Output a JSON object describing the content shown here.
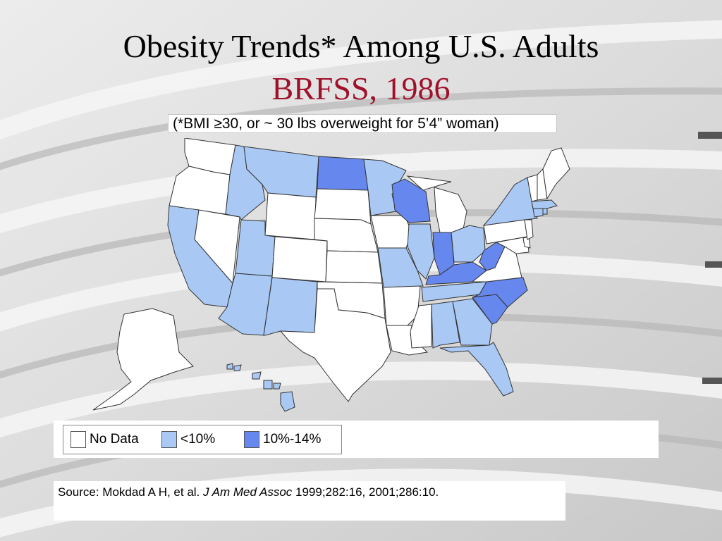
{
  "title": "Obesity Trends* Among U.S. Adults",
  "subtitle": "BRFSS, 1986",
  "note": "(*BMI ≥30, or ~ 30 lbs overweight for 5’4” woman)",
  "colors": {
    "no_data": "#ffffff",
    "lt10": "#a9c8f4",
    "10_14": "#6688ee",
    "title_red": "#a0102a",
    "state_border": "#333333"
  },
  "legend": [
    {
      "label": "No Data",
      "color_key": "no_data"
    },
    {
      "label": "<10%",
      "color_key": "lt10"
    },
    {
      "label": "10%-14%",
      "color_key": "10_14"
    }
  ],
  "states": {
    "WA": "no_data",
    "OR": "no_data",
    "CA": "lt10",
    "NV": "no_data",
    "ID": "lt10",
    "MT": "lt10",
    "WY": "no_data",
    "UT": "lt10",
    "AZ": "lt10",
    "CO": "no_data",
    "NM": "lt10",
    "ND": "10_14",
    "SD": "no_data",
    "NE": "no_data",
    "KS": "no_data",
    "OK": "no_data",
    "TX": "no_data",
    "MN": "lt10",
    "IA": "no_data",
    "MO": "lt10",
    "AR": "no_data",
    "LA": "no_data",
    "WI": "10_14",
    "IL": "lt10",
    "MI": "no_data",
    "IN": "10_14",
    "OH": "lt10",
    "KY": "10_14",
    "TN": "lt10",
    "MS": "no_data",
    "AL": "lt10",
    "GA": "lt10",
    "FL": "lt10",
    "SC": "10_14",
    "NC": "10_14",
    "VA": "no_data",
    "WV": "10_14",
    "MD": "no_data",
    "DE": "no_data",
    "NJ": "no_data",
    "PA": "no_data",
    "NY": "lt10",
    "CT": "lt10",
    "RI": "lt10",
    "MA": "lt10",
    "VT": "no_data",
    "NH": "no_data",
    "ME": "no_data",
    "AK": "no_data",
    "HI": "lt10"
  },
  "source": {
    "prefix": "Source: Mokdad A H, et al. ",
    "journal": "J Am Med Assoc",
    "suffix": " 1999;282:16, 2001;286:10."
  }
}
